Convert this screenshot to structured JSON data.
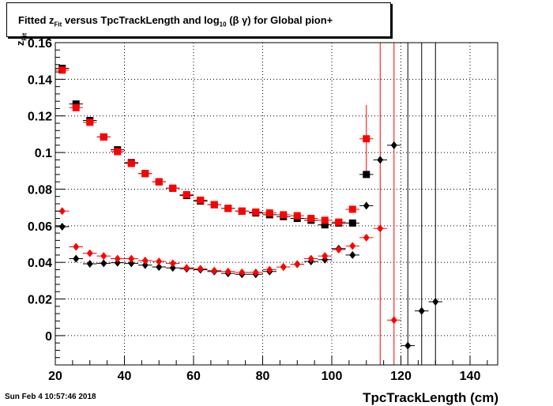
{
  "title": {
    "prefix": "Fitted  z",
    "sub1": "Fit",
    "middle": "  versus TpcTrackLength and log",
    "sub2": "10",
    "suffix": " (β γ) for Global pion+"
  },
  "footer": "Sun Feb  4 10:57:46 2018",
  "colors": {
    "black_series": "#000000",
    "red_series": "#ff0000",
    "grid": "#000000"
  },
  "chart_data": {
    "type": "scatter",
    "title": "Fitted z_Fit versus TpcTrackLength and log10 (β γ) for Global pion+",
    "xlabel": "TpcTrackLength (cm)",
    "ylabel": "z_Fit",
    "xlim": [
      20,
      148
    ],
    "ylim": [
      -0.016,
      0.16
    ],
    "xticks": [
      20,
      40,
      60,
      80,
      100,
      120,
      140
    ],
    "yticks": [
      0,
      0.02,
      0.04,
      0.06,
      0.08,
      0.1,
      0.12,
      0.14,
      0.16
    ],
    "ytick_labels": [
      "0",
      "0.02",
      "0.04",
      "0.06",
      "0.08",
      "0.1",
      "0.12",
      "0.14",
      "0.16"
    ],
    "xtick_labels": [
      "20",
      "40",
      "60",
      "80",
      "100",
      "120",
      "140"
    ],
    "grid": true,
    "series": [
      {
        "marker": "square",
        "color": "black",
        "points": [
          {
            "x": 22,
            "y": 0.146
          },
          {
            "x": 26,
            "y": 0.1265
          },
          {
            "x": 30,
            "y": 0.1175
          },
          {
            "x": 34,
            "y": 0.1085
          },
          {
            "x": 38,
            "y": 0.1015
          },
          {
            "x": 42,
            "y": 0.0945
          },
          {
            "x": 46,
            "y": 0.0885
          },
          {
            "x": 50,
            "y": 0.084
          },
          {
            "x": 54,
            "y": 0.0805
          },
          {
            "x": 58,
            "y": 0.0765
          },
          {
            "x": 62,
            "y": 0.0735
          },
          {
            "x": 66,
            "y": 0.0715
          },
          {
            "x": 70,
            "y": 0.0695
          },
          {
            "x": 74,
            "y": 0.068
          },
          {
            "x": 78,
            "y": 0.067
          },
          {
            "x": 82,
            "y": 0.066
          },
          {
            "x": 86,
            "y": 0.065
          },
          {
            "x": 90,
            "y": 0.064
          },
          {
            "x": 94,
            "y": 0.063
          },
          {
            "x": 98,
            "y": 0.0605
          },
          {
            "x": 102,
            "y": 0.0615
          },
          {
            "x": 106,
            "y": 0.0615
          },
          {
            "x": 110,
            "y": 0.088
          }
        ]
      },
      {
        "marker": "square",
        "color": "red",
        "points": [
          {
            "x": 22,
            "y": 0.145
          },
          {
            "x": 26,
            "y": 0.1245
          },
          {
            "x": 30,
            "y": 0.1165
          },
          {
            "x": 34,
            "y": 0.1085
          },
          {
            "x": 38,
            "y": 0.1005
          },
          {
            "x": 42,
            "y": 0.094
          },
          {
            "x": 46,
            "y": 0.0885
          },
          {
            "x": 50,
            "y": 0.084
          },
          {
            "x": 54,
            "y": 0.0805
          },
          {
            "x": 58,
            "y": 0.077
          },
          {
            "x": 62,
            "y": 0.074
          },
          {
            "x": 66,
            "y": 0.0715
          },
          {
            "x": 70,
            "y": 0.0695
          },
          {
            "x": 74,
            "y": 0.068
          },
          {
            "x": 78,
            "y": 0.0675
          },
          {
            "x": 82,
            "y": 0.067
          },
          {
            "x": 86,
            "y": 0.066
          },
          {
            "x": 90,
            "y": 0.0655
          },
          {
            "x": 94,
            "y": 0.064
          },
          {
            "x": 98,
            "y": 0.063
          },
          {
            "x": 102,
            "y": 0.062
          },
          {
            "x": 106,
            "y": 0.069
          },
          {
            "x": 110,
            "y": 0.1075,
            "err": 0.0185
          }
        ]
      },
      {
        "marker": "diamond",
        "color": "black",
        "points": [
          {
            "x": 22,
            "y": 0.0595
          },
          {
            "x": 26,
            "y": 0.042
          },
          {
            "x": 30,
            "y": 0.0392
          },
          {
            "x": 34,
            "y": 0.0395
          },
          {
            "x": 38,
            "y": 0.0398
          },
          {
            "x": 42,
            "y": 0.0395
          },
          {
            "x": 46,
            "y": 0.0385
          },
          {
            "x": 50,
            "y": 0.0375
          },
          {
            "x": 54,
            "y": 0.037
          },
          {
            "x": 58,
            "y": 0.0365
          },
          {
            "x": 62,
            "y": 0.036
          },
          {
            "x": 66,
            "y": 0.035
          },
          {
            "x": 70,
            "y": 0.034
          },
          {
            "x": 74,
            "y": 0.0335
          },
          {
            "x": 78,
            "y": 0.0335
          },
          {
            "x": 82,
            "y": 0.035
          },
          {
            "x": 86,
            "y": 0.0375
          },
          {
            "x": 90,
            "y": 0.039
          },
          {
            "x": 94,
            "y": 0.0405
          },
          {
            "x": 98,
            "y": 0.0415
          },
          {
            "x": 102,
            "y": 0.0475
          },
          {
            "x": 106,
            "y": 0.044
          },
          {
            "x": 110,
            "y": 0.071
          },
          {
            "x": 114,
            "y": 0.096
          },
          {
            "x": 118,
            "y": 0.104
          },
          {
            "x": 122,
            "y": -0.0055
          },
          {
            "x": 126,
            "y": 0.0135
          },
          {
            "x": 130,
            "y": 0.0185
          }
        ]
      },
      {
        "marker": "diamond",
        "color": "red",
        "points": [
          {
            "x": 22,
            "y": 0.068
          },
          {
            "x": 26,
            "y": 0.0485
          },
          {
            "x": 30,
            "y": 0.045
          },
          {
            "x": 34,
            "y": 0.0435
          },
          {
            "x": 38,
            "y": 0.042
          },
          {
            "x": 42,
            "y": 0.042
          },
          {
            "x": 46,
            "y": 0.041
          },
          {
            "x": 50,
            "y": 0.0405
          },
          {
            "x": 54,
            "y": 0.0395
          },
          {
            "x": 58,
            "y": 0.037
          },
          {
            "x": 62,
            "y": 0.0365
          },
          {
            "x": 66,
            "y": 0.0355
          },
          {
            "x": 70,
            "y": 0.035
          },
          {
            "x": 74,
            "y": 0.0345
          },
          {
            "x": 78,
            "y": 0.0345
          },
          {
            "x": 82,
            "y": 0.036
          },
          {
            "x": 86,
            "y": 0.0375
          },
          {
            "x": 90,
            "y": 0.039
          },
          {
            "x": 94,
            "y": 0.042
          },
          {
            "x": 98,
            "y": 0.0435
          },
          {
            "x": 102,
            "y": 0.047
          },
          {
            "x": 106,
            "y": 0.049
          },
          {
            "x": 110,
            "y": 0.0535
          },
          {
            "x": 114,
            "y": 0.0585
          },
          {
            "x": 118,
            "y": 0.0085
          }
        ]
      }
    ],
    "error_bars_full_range": [
      {
        "x": 114,
        "color": "red"
      },
      {
        "x": 118,
        "color": "red"
      },
      {
        "x": 122,
        "color": "black"
      },
      {
        "x": 126,
        "color": "black"
      },
      {
        "x": 130,
        "color": "black"
      }
    ]
  }
}
